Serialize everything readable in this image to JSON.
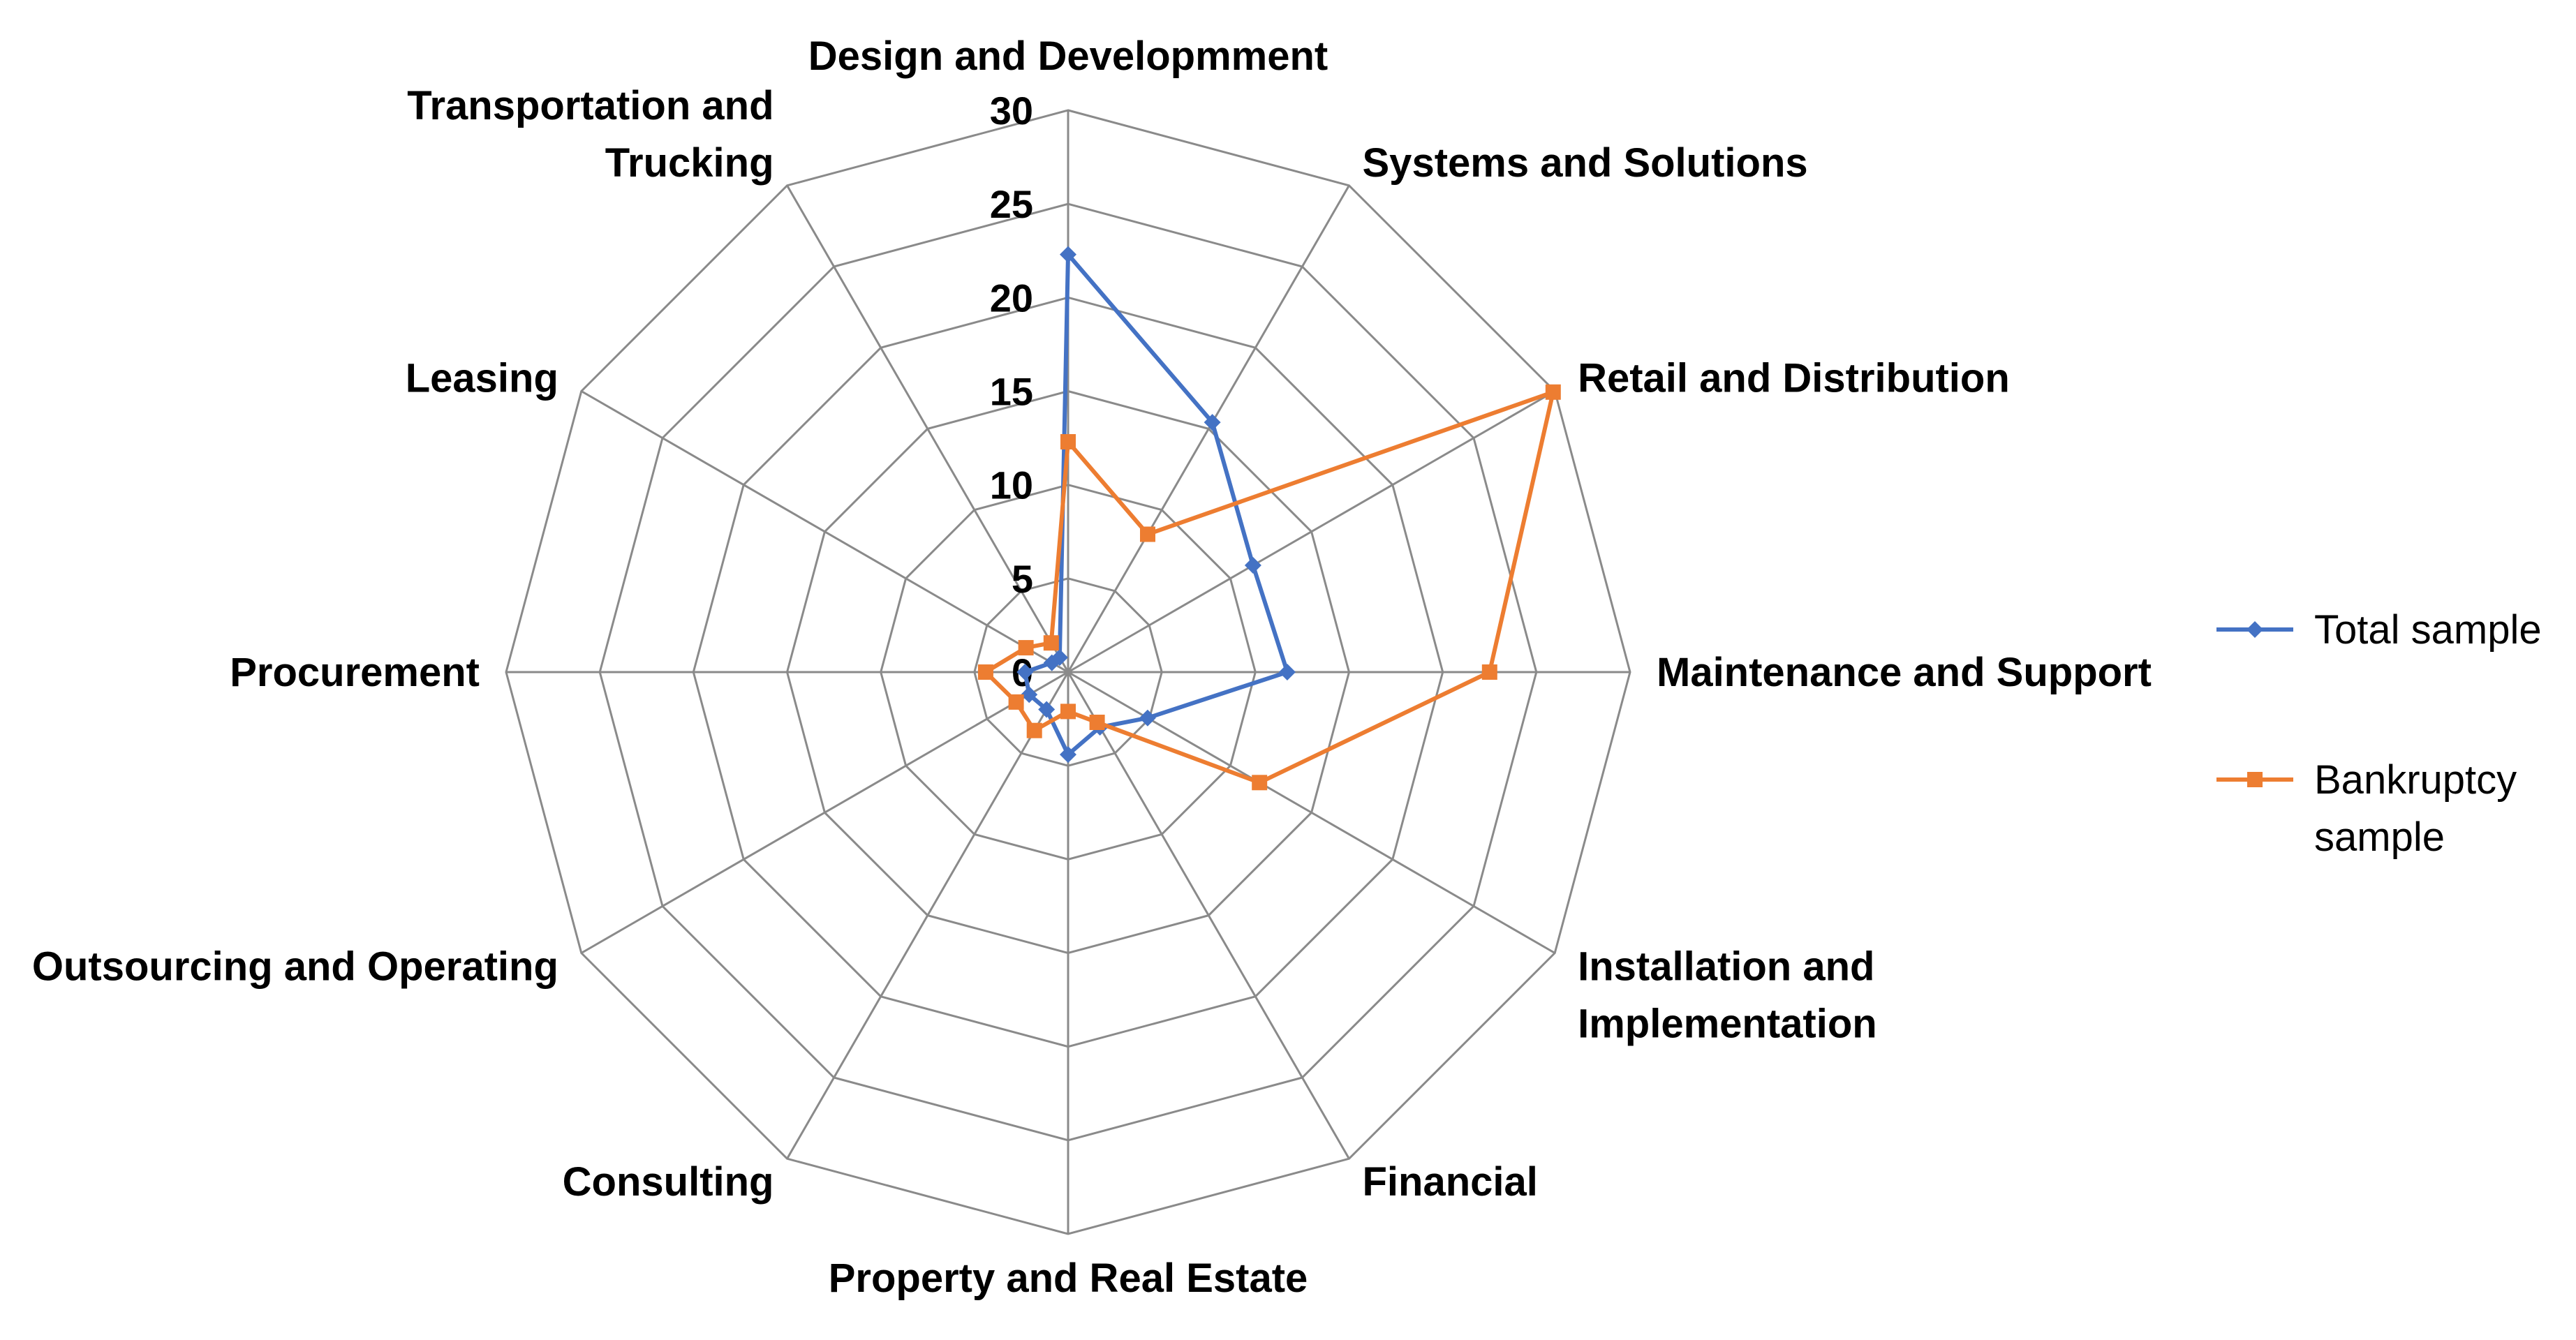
{
  "chart_data": {
    "type": "radar",
    "categories": [
      "Design and Developmment",
      "Systems and Solutions",
      "Retail and Distribution",
      "Maintenance and Support",
      "Installation and Implementation",
      "Financial",
      "Property and Real Estate",
      "Consulting",
      "Outsourcing and Operating",
      "Procurement",
      "Leasing",
      "Transportation and Trucking"
    ],
    "category_label_lines": [
      [
        "Design and Developmment"
      ],
      [
        "Systems and Solutions"
      ],
      [
        "Retail and Distribution"
      ],
      [
        "Maintenance and Support"
      ],
      [
        "Installation and",
        "Implementation"
      ],
      [
        "Financial"
      ],
      [
        "Property and Real Estate"
      ],
      [
        "Consulting"
      ],
      [
        "Outsourcing and Operating"
      ],
      [
        "Procurement"
      ],
      [
        "Leasing"
      ],
      [
        "Transportation and",
        "Trucking"
      ]
    ],
    "ticks": [
      "0",
      "5",
      "10",
      "15",
      "20",
      "25",
      "30"
    ],
    "rlim": [
      0,
      30
    ],
    "grid": true,
    "legend_position": "right",
    "series": [
      {
        "name": "Total sample",
        "color": "#4472C4",
        "marker": "diamond",
        "values": [
          22.3,
          15.4,
          11.4,
          11.7,
          4.9,
          3.4,
          4.4,
          2.3,
          2.4,
          2.3,
          1.0,
          0.9
        ]
      },
      {
        "name": "Bankruptcy sample",
        "legend_lines": [
          "Bankruptcy",
          "sample"
        ],
        "color": "#ED7D31",
        "marker": "square",
        "values": [
          12.3,
          8.5,
          29.9,
          22.5,
          11.8,
          3.1,
          2.1,
          3.6,
          3.2,
          4.4,
          2.6,
          1.8
        ]
      }
    ]
  }
}
